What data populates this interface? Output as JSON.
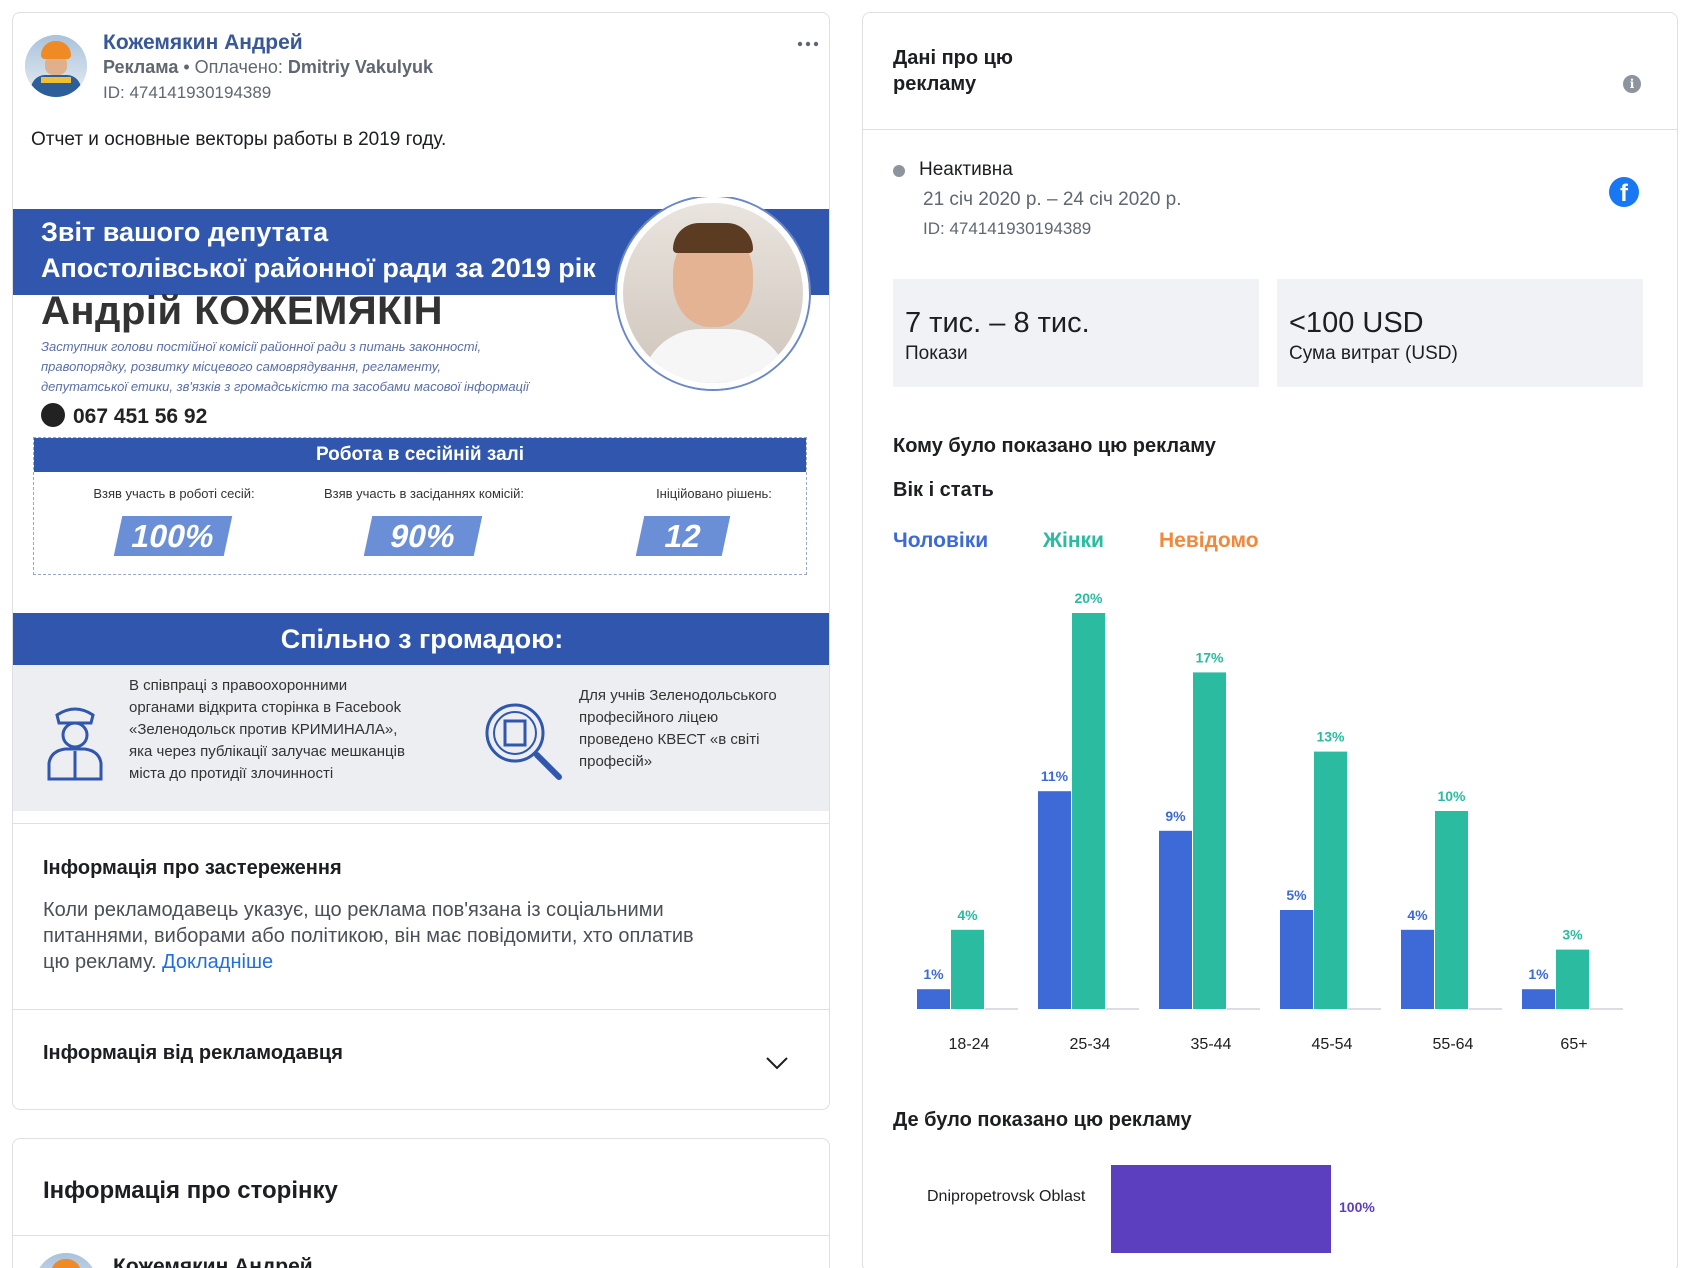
{
  "left": {
    "advertiser_name": "Кожемякин Андрей",
    "ad_label": "Реклама",
    "paid_prefix": "• Оплачено:",
    "payer": "Dmitriy Vakulyuk",
    "ad_id": "ID: 474141930194389",
    "more_icon": "more-horizontal-icon",
    "post_text": "Отчет и основные векторы работы в 2019 году.",
    "creative": {
      "banner_line1": "Звіт вашого депутата",
      "banner_line2": "Апостолівської районної ради за 2019 рік",
      "deputy_name": "Андрій КОЖЕМЯКІН",
      "desc_line1": "Заступник голови постійної комісії районної ради з питань законності,",
      "desc_line2": "правопорядку, розвитку місцевого самоврядування, регламенту,",
      "desc_line3": "депутатської етики, зв'язків з громадськістю та засобами масової інформації",
      "phone": "067 451 56 92",
      "session_title": "Робота в сесійній залі",
      "stats": [
        {
          "label": "Взяв участь в роботі сесій:",
          "value": "100%"
        },
        {
          "label": "Взяв участь в засіданнях комісій:",
          "value": "90%"
        },
        {
          "label": "Ініційовано рішень:",
          "value": "12"
        }
      ],
      "together_title": "Спільно з громадою:",
      "panel_left": [
        "В співпраці з правоохоронними",
        "органами відкрита сторінка в Facebook",
        "«Зеленодольск против КРИМИНАЛА»,",
        "яка через публікації залучає мешканців",
        "міста до протидії злочинності"
      ],
      "panel_right": [
        "Для учнів Зеленодольського",
        "професійного ліцею",
        "проведено КВЕСТ «в світі",
        "професій»"
      ]
    },
    "disclaimer_title": "Інформація про застереження",
    "disclaimer_lines": [
      "Коли рекламодавець указує, що реклама пов'язана із соціальними",
      "питаннями, виборами або політикою, він має повідомити, хто оплатив"
    ],
    "disclaimer_last": "цю рекламу.",
    "disclaimer_link": "Докладніше",
    "advertiser_info_title": "Інформація від рекламодавця",
    "page_info_title": "Інформація про сторінку",
    "page_advertiser_name": "Кожемякин Андрей"
  },
  "right": {
    "title": "Дані про цю рекламу",
    "status": "Неактивна",
    "dates": "21 січ 2020 р. – 24 січ 2020 р.",
    "ad_id": "ID: 474141930194389",
    "impressions_value": "7 тис. – 8 тис.",
    "impressions_label": "Покази",
    "spend_value": "<100 USD",
    "spend_label": "Сума витрат (USD)",
    "audience_title": "Кому було показано цю рекламу",
    "age_gender_title": "Вік і стать",
    "legend_men": "Чоловіки",
    "legend_women": "Жінки",
    "legend_unknown": "Невідомо",
    "where_title": "Де було показано цю рекламу",
    "region_name": "Dnipropetrovsk Oblast",
    "region_pct_label": "100%",
    "region_pct": 100
  },
  "colors": {
    "men": "#3d6ad6",
    "women": "#2abba0",
    "unknown": "#f2883a",
    "region": "#5b3fbe",
    "brand_blue": "#3056ad",
    "link": "#216fdb"
  },
  "chart_data": {
    "type": "bar",
    "categories": [
      "18-24",
      "25-34",
      "35-44",
      "45-54",
      "55-64",
      "65+"
    ],
    "series": [
      {
        "name": "Чоловіки",
        "values": [
          1,
          11,
          9,
          5,
          4,
          1
        ]
      },
      {
        "name": "Жінки",
        "values": [
          4,
          20,
          17,
          13,
          10,
          3
        ]
      },
      {
        "name": "Невідомо",
        "values": [
          0,
          0,
          0,
          0,
          0,
          0
        ]
      }
    ],
    "value_suffix": "%",
    "ylim": [
      0,
      20
    ]
  }
}
